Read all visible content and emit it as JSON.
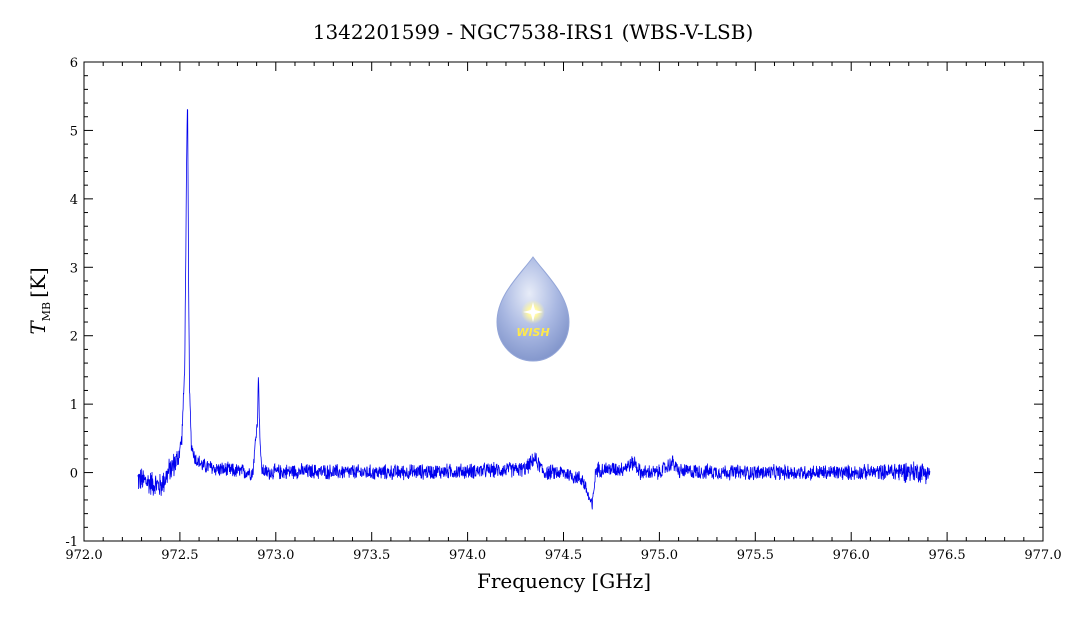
{
  "chart_data": {
    "type": "line",
    "title": "1342201599 - NGC7538-IRS1 (WBS-V-LSB)",
    "xlabel": "Frequency [GHz]",
    "ylabel": {
      "symbol": "T",
      "subscript": "MB",
      "unit": "[K]"
    },
    "xlim": [
      972.0,
      977.0
    ],
    "ylim": [
      -1,
      6
    ],
    "x_ticks": [
      "972.0",
      "972.5",
      "973.0",
      "973.5",
      "974.0",
      "974.5",
      "975.0",
      "975.5",
      "976.0",
      "976.5",
      "977.0"
    ],
    "y_ticks": [
      "-1",
      "0",
      "1",
      "2",
      "3",
      "4",
      "5",
      "6"
    ],
    "grid": false,
    "series": [
      {
        "color": "#0000ee",
        "x": [
          972.28,
          972.35,
          972.4,
          972.45,
          972.49,
          972.51,
          972.525,
          972.535,
          972.54,
          972.545,
          972.55,
          972.56,
          972.58,
          972.62,
          972.7,
          972.8,
          972.88,
          972.905,
          972.91,
          972.915,
          972.925,
          972.95,
          973.1,
          973.5,
          974.0,
          974.3,
          974.35,
          974.4,
          974.5,
          974.6,
          974.65,
          974.66,
          974.67,
          974.8,
          974.87,
          974.9,
          975.0,
          975.07,
          975.1,
          975.5,
          976.0,
          976.3,
          976.41
        ],
        "y": [
          -0.1,
          -0.15,
          -0.2,
          0.05,
          0.2,
          0.5,
          1.5,
          4.5,
          5.5,
          3.0,
          1.2,
          0.4,
          0.2,
          0.1,
          0.05,
          0.02,
          0.0,
          0.8,
          1.5,
          0.7,
          0.05,
          0.0,
          0.02,
          0.0,
          0.02,
          0.05,
          0.2,
          0.0,
          0.0,
          -0.1,
          -0.5,
          -0.2,
          0.05,
          0.05,
          0.15,
          0.0,
          0.0,
          0.15,
          0.02,
          0.0,
          0.0,
          0.02,
          0.0
        ]
      }
    ]
  },
  "logo": {
    "text": "WISH"
  },
  "colors": {
    "line": "#0000ee",
    "axis": "#000000",
    "logo": "#8a9fd3"
  }
}
